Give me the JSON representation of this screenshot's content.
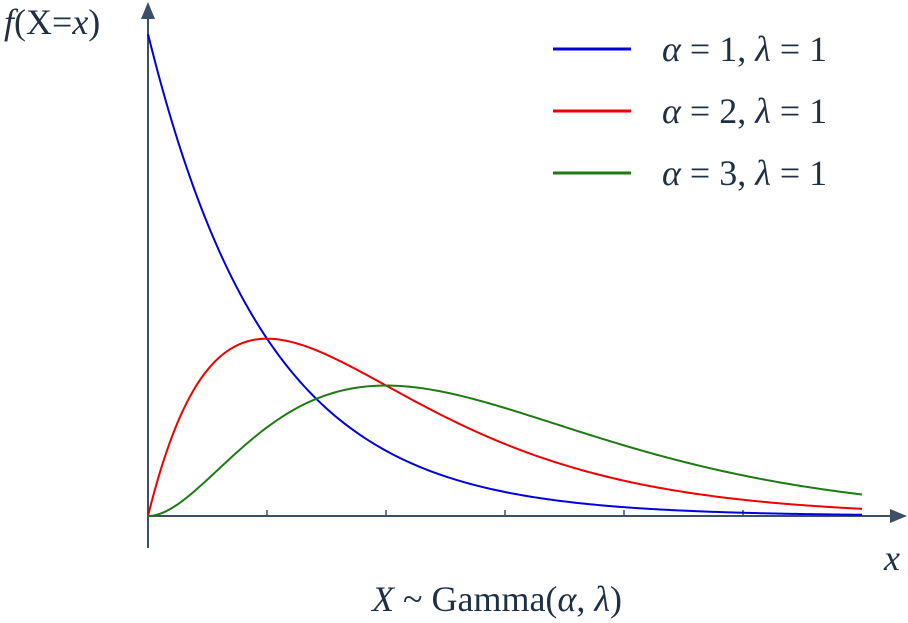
{
  "chart_data": {
    "type": "line",
    "title": "",
    "ylabel": {
      "f": "f",
      "open": "(X=",
      "x": "x",
      "close": ")"
    },
    "xlabel": "x",
    "caption": {
      "X": "X",
      "rest": " ~ Gamma(",
      "alpha": "α",
      "comma": ", ",
      "lambda": "λ",
      "close": ")"
    },
    "xlim": [
      0,
      6
    ],
    "ylim": [
      0,
      1
    ],
    "x_ticks": [
      1,
      2,
      3,
      4,
      5
    ],
    "axis_color": "#3d4f66",
    "legend_position": "top-right",
    "series": [
      {
        "name": "α = 1, λ = 1",
        "legend": {
          "a": "α",
          "a_eq": " = 1, ",
          "l": "λ",
          "l_eq": " = 1"
        },
        "alpha": 1,
        "lambda": 1,
        "color": "#0000dd",
        "x": [
          0,
          0.25,
          0.5,
          0.75,
          1,
          1.5,
          2,
          2.5,
          3,
          3.5,
          4,
          4.5,
          5,
          5.5,
          6
        ],
        "y": [
          1.0,
          0.779,
          0.607,
          0.472,
          0.368,
          0.223,
          0.135,
          0.082,
          0.05,
          0.03,
          0.018,
          0.011,
          0.007,
          0.004,
          0.002
        ]
      },
      {
        "name": "α = 2, λ = 1",
        "legend": {
          "a": "α",
          "a_eq": " = 2, ",
          "l": "λ",
          "l_eq": " = 1"
        },
        "alpha": 2,
        "lambda": 1,
        "color": "#ee0000",
        "x": [
          0,
          0.25,
          0.5,
          0.75,
          1,
          1.5,
          2,
          2.5,
          3,
          3.5,
          4,
          4.5,
          5,
          5.5,
          6
        ],
        "y": [
          0.0,
          0.195,
          0.303,
          0.354,
          0.368,
          0.335,
          0.271,
          0.205,
          0.149,
          0.106,
          0.073,
          0.05,
          0.034,
          0.022,
          0.015
        ]
      },
      {
        "name": "α = 3, λ = 1",
        "legend": {
          "a": "α",
          "a_eq": " = 3, ",
          "l": "λ",
          "l_eq": " = 1"
        },
        "alpha": 3,
        "lambda": 1,
        "color": "#1e7a12",
        "x": [
          0,
          0.25,
          0.5,
          0.75,
          1,
          1.5,
          2,
          2.5,
          3,
          3.5,
          4,
          4.5,
          5,
          5.5,
          6
        ],
        "y": [
          0.0,
          0.024,
          0.076,
          0.133,
          0.184,
          0.251,
          0.271,
          0.257,
          0.224,
          0.185,
          0.147,
          0.112,
          0.084,
          0.062,
          0.045
        ]
      }
    ]
  }
}
